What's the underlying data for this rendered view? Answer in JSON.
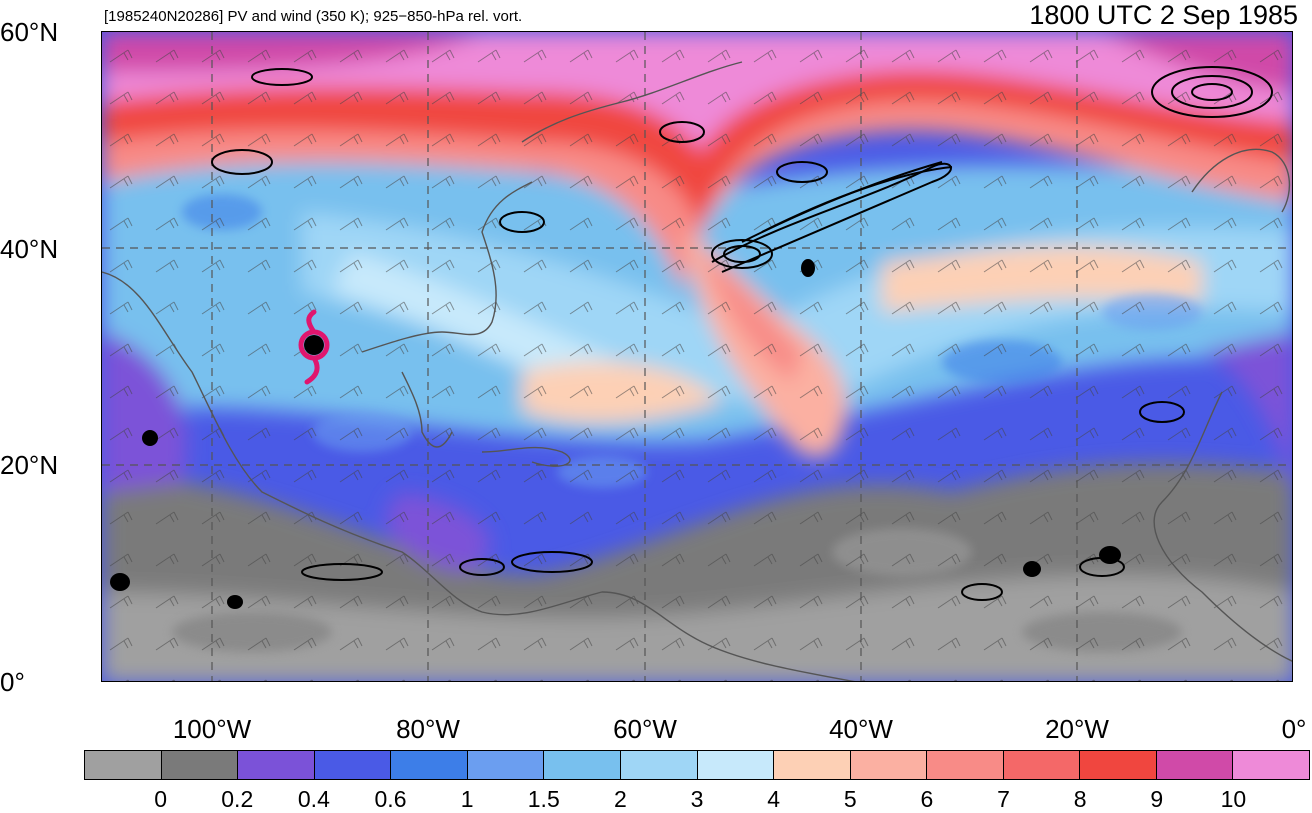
{
  "header": {
    "left_title": "[1985240N20286] PV and wind (350 K); 925−850-hPa rel. vort.",
    "right_title": "1800 UTC 2 Sep 1985"
  },
  "axes": {
    "lat_labels": [
      "60°N",
      "40°N",
      "20°N",
      "0°"
    ],
    "lon_labels": [
      "100°W",
      "80°W",
      "60°W",
      "40°W",
      "20°W",
      "0°"
    ]
  },
  "colorbar": {
    "colors": [
      "#a0a0a0",
      "#7a7a7a",
      "#7b52d8",
      "#4a5ae6",
      "#3d7ee8",
      "#6b9ef0",
      "#78c0ee",
      "#9fd6f6",
      "#c7e9fb",
      "#fdd0b5",
      "#fbb0a2",
      "#f88b87",
      "#f46868",
      "#f0463f",
      "#d04aa8",
      "#ee8ad8"
    ],
    "labels": [
      "0",
      "0.2",
      "0.4",
      "0.6",
      "1",
      "1.5",
      "2",
      "3",
      "4",
      "5",
      "6",
      "7",
      "8",
      "9",
      "10"
    ]
  },
  "map": {
    "storm_marker_color": "#e0166e",
    "vorticity_contour_color": "#000000",
    "coastline_color": "#555555",
    "gridline_style": "dashed"
  }
}
